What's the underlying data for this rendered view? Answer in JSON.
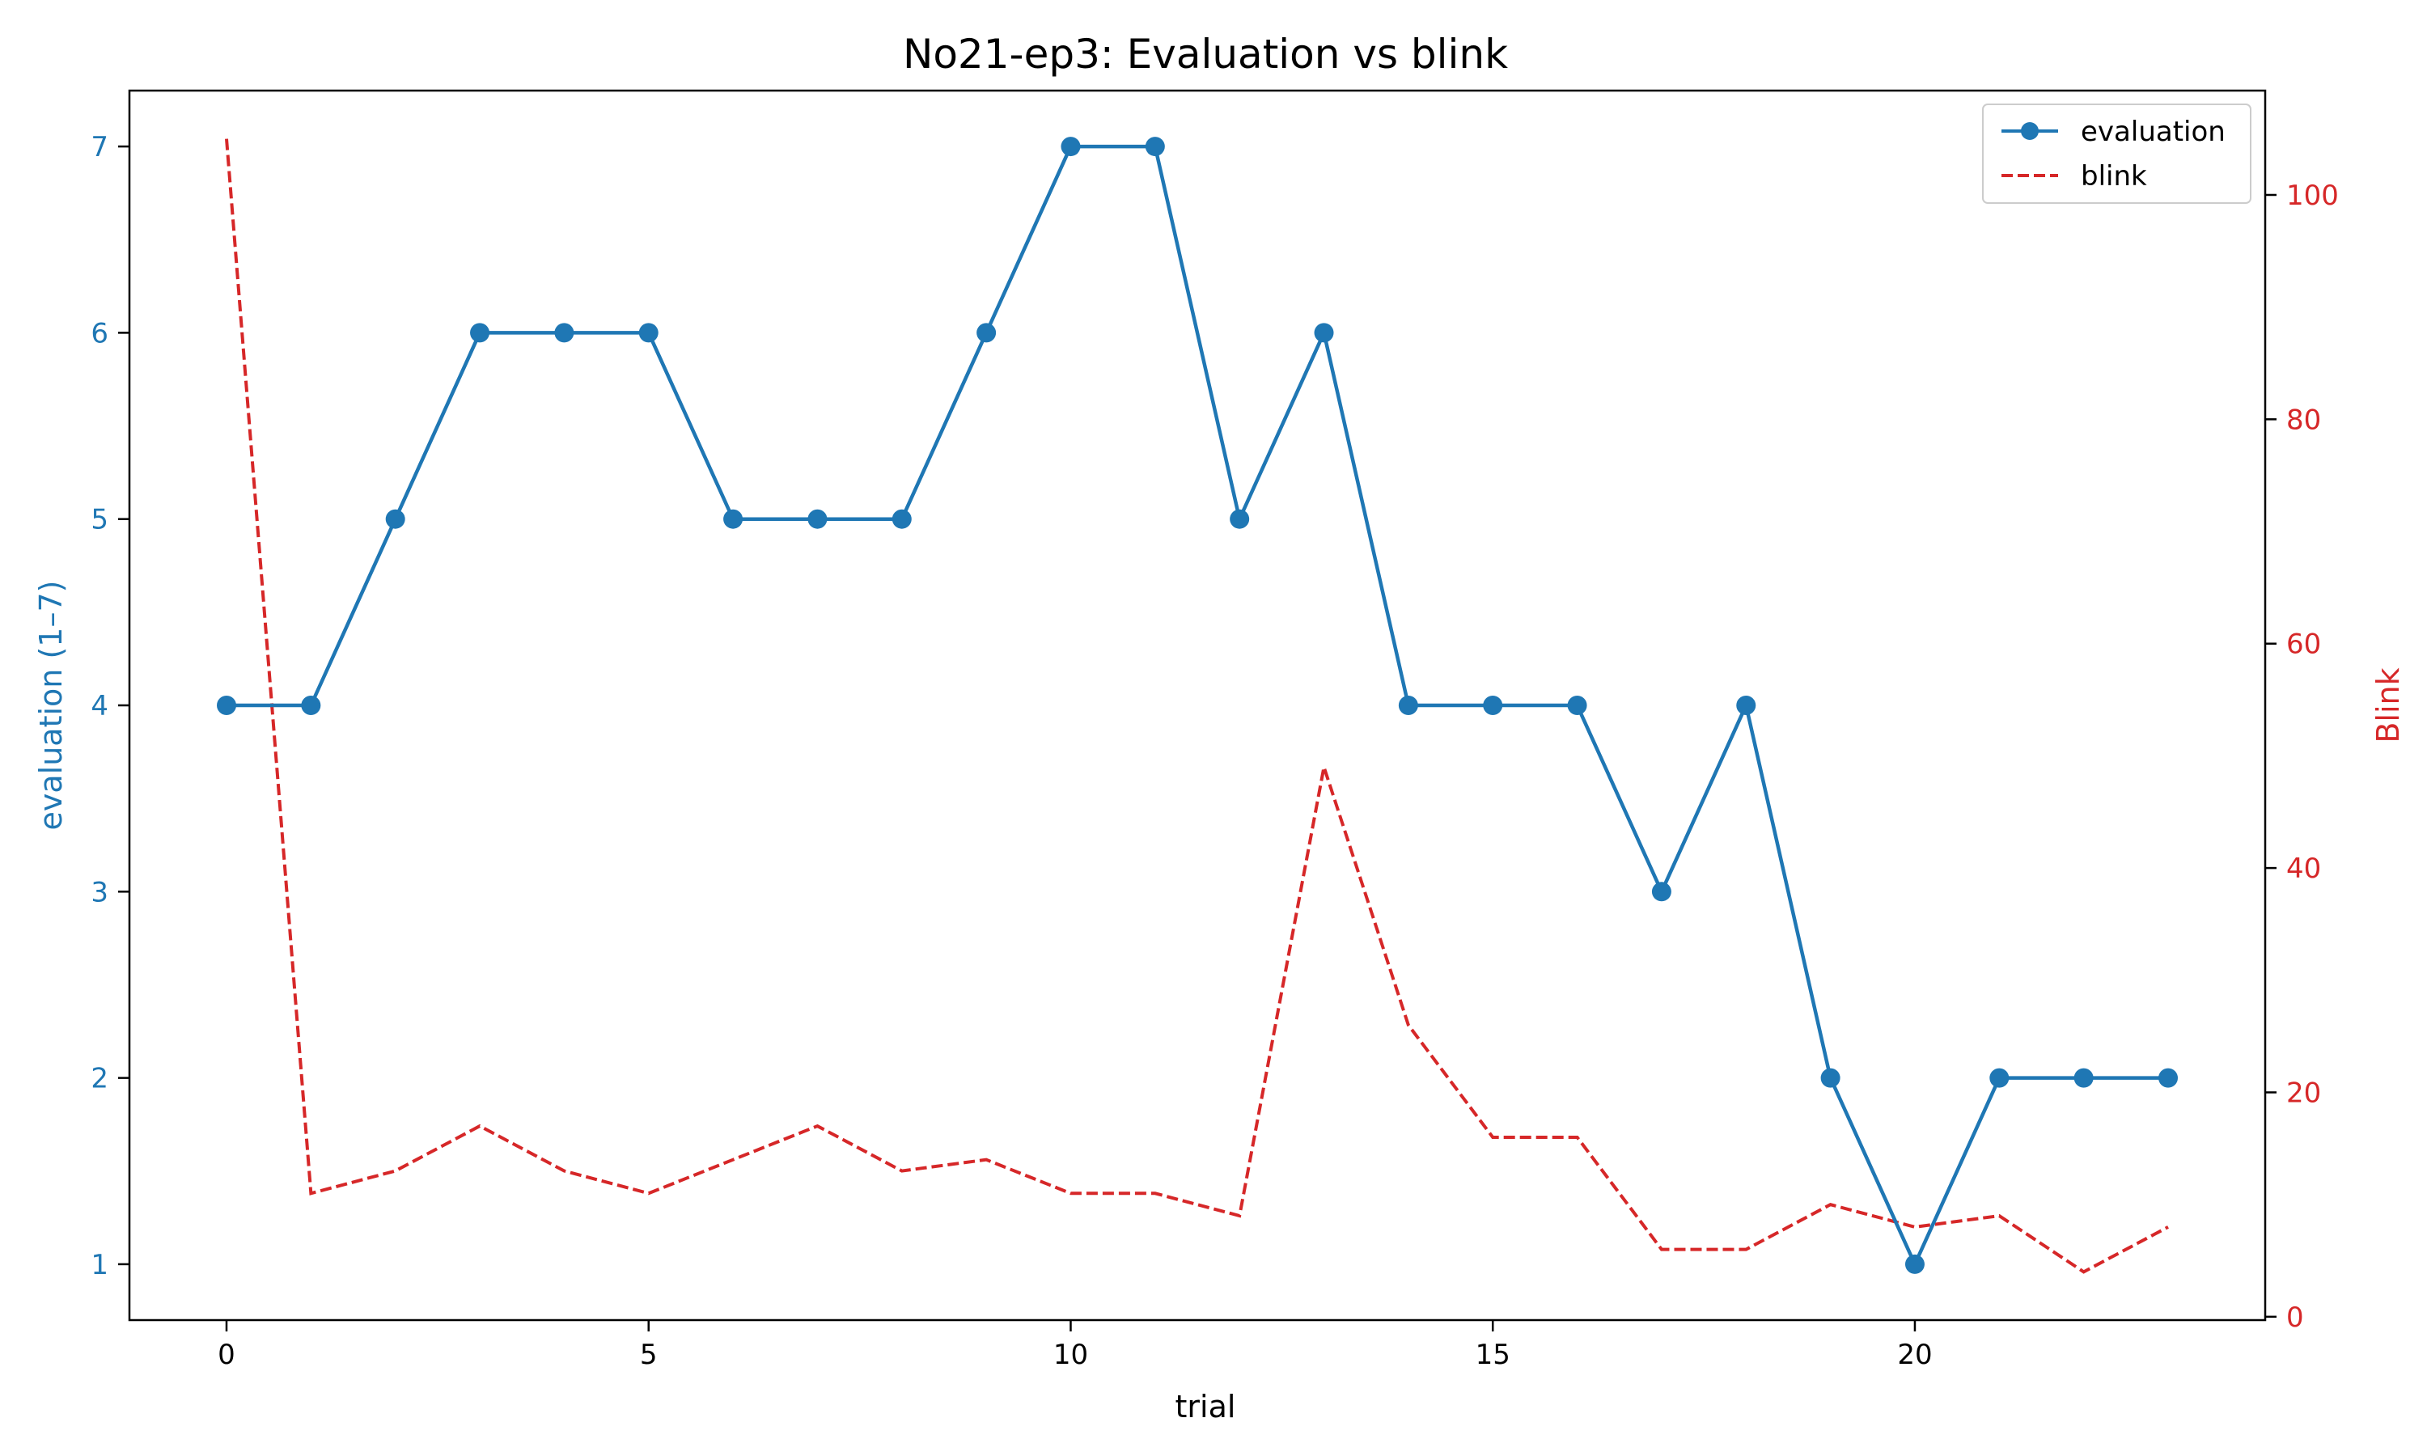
{
  "chart_data": {
    "type": "line",
    "title": "No21-ep3: Evaluation vs blink",
    "xlabel": "trial",
    "ylabel_left": "evaluation (1–7)",
    "ylabel_right": "Blink",
    "xlim": [
      -1.15,
      24.15
    ],
    "ylim_left": [
      0.7,
      7.3
    ],
    "ylim_right": [
      -0.3,
      109.3
    ],
    "x_ticks": [
      0,
      5,
      10,
      15,
      20
    ],
    "y_left_ticks": [
      1,
      2,
      3,
      4,
      5,
      6,
      7
    ],
    "y_right_ticks": [
      0,
      20,
      40,
      60,
      80,
      100
    ],
    "grid": false,
    "legend_position": "top-right",
    "series": [
      {
        "name": "evaluation",
        "axis": "left",
        "style": "solid-with-markers",
        "color": "#1f77b4",
        "x": [
          0,
          1,
          2,
          3,
          4,
          5,
          6,
          7,
          8,
          9,
          10,
          11,
          12,
          13,
          14,
          15,
          16,
          17,
          18,
          19,
          20,
          21,
          22,
          23
        ],
        "values": [
          4,
          4,
          5,
          6,
          6,
          6,
          5,
          5,
          5,
          6,
          7,
          7,
          5,
          6,
          4,
          4,
          4,
          3,
          4,
          2,
          1,
          2,
          2,
          2
        ]
      },
      {
        "name": "blink",
        "axis": "right",
        "style": "dashed",
        "color": "#d62728",
        "x": [
          0,
          1,
          2,
          3,
          4,
          5,
          6,
          7,
          8,
          9,
          10,
          11,
          12,
          13,
          14,
          15,
          16,
          17,
          18,
          19,
          20,
          21,
          22,
          23
        ],
        "values": [
          105,
          11,
          13,
          17,
          13,
          11,
          14,
          17,
          13,
          14,
          11,
          11,
          9,
          49,
          26,
          16,
          16,
          6,
          6,
          10,
          8,
          9,
          4,
          8
        ]
      }
    ]
  }
}
